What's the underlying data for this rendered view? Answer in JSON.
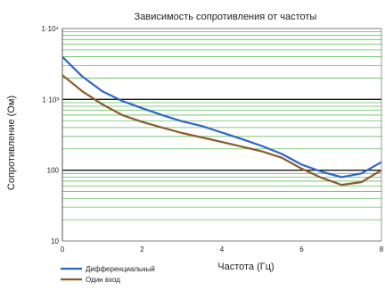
{
  "chart_data": {
    "type": "line",
    "title": "Зависимость сопротивления от частоты",
    "xlabel": "Частота (Гц)",
    "ylabel": "Сопротивление (Ом)",
    "xlim": [
      0,
      8
    ],
    "ylim": [
      10,
      10000
    ],
    "yscale": "log",
    "grid": true,
    "legend_position": "bottom-left",
    "x_ticks": [
      0,
      2,
      4,
      6,
      8
    ],
    "y_ticks": [
      {
        "value": 10,
        "label": "10"
      },
      {
        "value": 100,
        "label": "100"
      },
      {
        "value": 1000,
        "label": "1·10³"
      },
      {
        "value": 10000,
        "label": "1·10⁴"
      }
    ],
    "series": [
      {
        "name": "Дифференциальный",
        "color": "#2e64c8",
        "x": [
          0,
          0.5,
          1,
          1.5,
          2,
          2.5,
          3,
          3.5,
          4,
          4.5,
          5,
          5.5,
          6,
          6.5,
          7,
          7.5,
          8
        ],
        "y": [
          4000,
          2100,
          1300,
          950,
          750,
          600,
          490,
          420,
          340,
          275,
          220,
          170,
          120,
          95,
          80,
          90,
          130
        ]
      },
      {
        "name": "Один вход",
        "color": "#8b5a2b",
        "x": [
          0,
          0.5,
          1,
          1.5,
          2,
          2.5,
          3,
          3.5,
          4,
          4.5,
          5,
          5.5,
          6,
          6.5,
          7,
          7.5,
          8
        ],
        "y": [
          2200,
          1300,
          850,
          600,
          480,
          400,
          335,
          290,
          250,
          215,
          185,
          150,
          105,
          78,
          62,
          68,
          100
        ]
      }
    ]
  },
  "colors": {
    "grid_green": "#5fbe5f",
    "grid_major": "#1a1a1a",
    "axis": "#555555"
  }
}
